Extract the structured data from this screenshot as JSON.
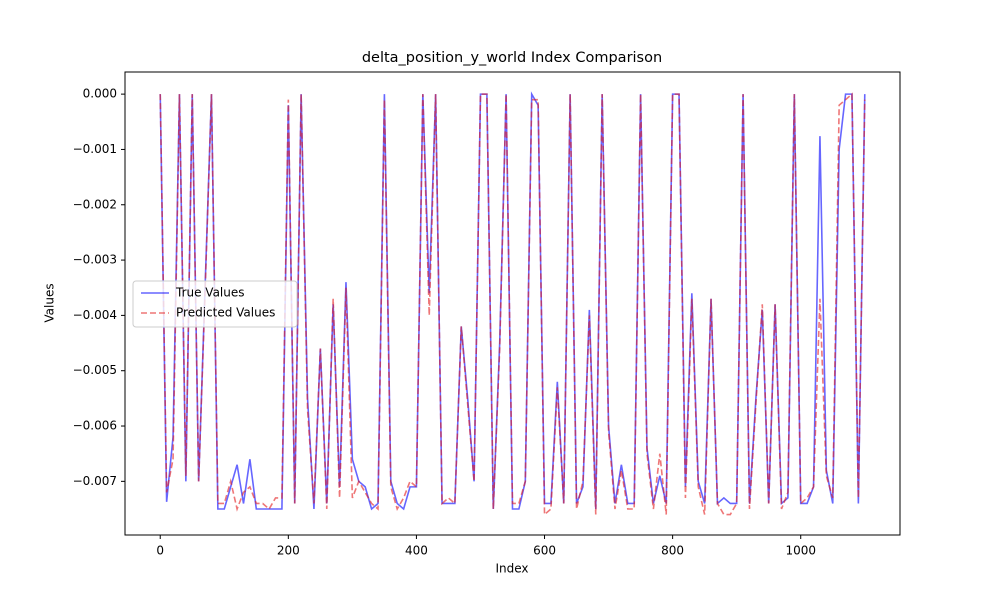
{
  "chart_data": {
    "type": "line",
    "title": "delta_position_y_world Index Comparison",
    "x_label": "Index",
    "y_label": "Values",
    "x": [
      0,
      10,
      20,
      30,
      40,
      50,
      60,
      70,
      80,
      90,
      100,
      110,
      120,
      130,
      140,
      150,
      160,
      170,
      180,
      190,
      200,
      210,
      220,
      230,
      240,
      250,
      260,
      270,
      280,
      290,
      300,
      310,
      320,
      330,
      340,
      350,
      360,
      370,
      380,
      390,
      400,
      410,
      420,
      430,
      440,
      450,
      460,
      470,
      480,
      490,
      500,
      510,
      520,
      530,
      540,
      550,
      560,
      570,
      580,
      590,
      600,
      610,
      620,
      630,
      640,
      650,
      660,
      670,
      680,
      690,
      700,
      710,
      720,
      730,
      740,
      750,
      760,
      770,
      780,
      790,
      800,
      810,
      820,
      830,
      840,
      850,
      860,
      870,
      880,
      890,
      900,
      910,
      920,
      930,
      940,
      950,
      960,
      970,
      980,
      990,
      1000,
      1010,
      1020,
      1030,
      1040,
      1050,
      1060,
      1070,
      1080,
      1090,
      1100
    ],
    "series": [
      {
        "name": "True Values",
        "color": "#0000ff",
        "dashed": false,
        "values": [
          0,
          -0.00737,
          -0.0062,
          0,
          -0.007,
          0,
          -0.007,
          -0.0035,
          0,
          -0.0075,
          -0.0075,
          -0.0071,
          -0.0067,
          -0.0074,
          -0.0066,
          -0.0075,
          -0.0075,
          -0.0075,
          -0.0075,
          -0.0075,
          -0.0002,
          -0.0074,
          0,
          -0.0055,
          -0.0075,
          -0.0046,
          -0.0074,
          -0.0038,
          -0.0071,
          -0.0034,
          -0.0066,
          -0.007,
          -0.0071,
          -0.0075,
          -0.0074,
          0,
          -0.007,
          -0.0074,
          -0.0075,
          -0.0071,
          -0.0071,
          0,
          -0.0036,
          0,
          -0.0074,
          -0.0074,
          -0.0074,
          -0.0042,
          -0.0055,
          -0.007,
          0,
          0,
          -0.0075,
          -0.0045,
          0,
          -0.0075,
          -0.0075,
          -0.007,
          0,
          -0.0002,
          -0.0074,
          -0.0074,
          -0.0052,
          -0.0074,
          0,
          -0.0074,
          -0.0071,
          -0.0039,
          -0.0075,
          0,
          -0.006,
          -0.0074,
          -0.0067,
          -0.0074,
          -0.0074,
          0,
          -0.0064,
          -0.0074,
          -0.0069,
          -0.0074,
          0,
          0,
          -0.0071,
          -0.0036,
          -0.007,
          -0.0074,
          -0.0037,
          -0.0074,
          -0.0073,
          -0.0074,
          -0.0074,
          0,
          -0.0074,
          -0.0055,
          -0.0039,
          -0.0074,
          -0.0038,
          -0.0074,
          -0.0073,
          0,
          -0.0074,
          -0.0074,
          -0.0071,
          -0.00076,
          -0.0068,
          -0.0074,
          -0.001,
          0,
          0,
          -0.0074,
          0
        ]
      },
      {
        "name": "Predicted Values",
        "color": "#e31a1c",
        "dashed": true,
        "values": [
          0,
          -0.0072,
          -0.0066,
          0,
          -0.0069,
          0,
          -0.007,
          -0.0036,
          0,
          -0.0074,
          -0.0074,
          -0.007,
          -0.0075,
          -0.0072,
          -0.0071,
          -0.0074,
          -0.0074,
          -0.0075,
          -0.0073,
          -0.0073,
          -0.0001,
          -0.0074,
          0,
          -0.0057,
          -0.0074,
          -0.0046,
          -0.0075,
          -0.0037,
          -0.0073,
          -0.0035,
          -0.0073,
          -0.007,
          -0.0072,
          -0.0074,
          -0.0075,
          -0.0001,
          -0.0071,
          -0.0075,
          -0.0073,
          -0.007,
          -0.0071,
          0,
          -0.004,
          0,
          -0.0074,
          -0.0073,
          -0.0074,
          -0.0042,
          -0.0056,
          -0.007,
          0,
          0,
          -0.0075,
          -0.0046,
          0,
          -0.0074,
          -0.0074,
          -0.007,
          -0.0001,
          -0.0001,
          -0.0076,
          -0.0075,
          -0.0053,
          -0.0074,
          0,
          -0.0075,
          -0.007,
          -0.004,
          -0.0076,
          0,
          -0.0061,
          -0.0075,
          -0.0068,
          -0.0075,
          -0.0075,
          0,
          -0.0065,
          -0.0075,
          -0.0065,
          -0.0076,
          0,
          0,
          -0.0073,
          -0.0037,
          -0.0071,
          -0.0076,
          -0.0037,
          -0.0074,
          -0.0076,
          -0.0076,
          -0.0074,
          0,
          -0.0075,
          -0.0056,
          -0.0038,
          -0.0074,
          -0.0038,
          -0.0075,
          -0.0072,
          0,
          -0.0074,
          -0.0073,
          -0.0071,
          -0.0037,
          -0.0069,
          -0.0073,
          -0.0002,
          -0.0001,
          0,
          -0.0073,
          -0.0001
        ]
      }
    ],
    "xlim": [
      -55,
      1155
    ],
    "ylim": [
      -0.00797,
      0.0004
    ],
    "xticks": [
      0,
      200,
      400,
      600,
      800,
      1000
    ],
    "yticks": [
      {
        "value": 0,
        "label": "0.000"
      },
      {
        "value": -0.001,
        "label": "−0.001"
      },
      {
        "value": -0.002,
        "label": "−0.002"
      },
      {
        "value": -0.003,
        "label": "−0.003"
      },
      {
        "value": -0.004,
        "label": "−0.004"
      },
      {
        "value": -0.005,
        "label": "−0.005"
      },
      {
        "value": -0.006,
        "label": "−0.006"
      },
      {
        "value": -0.007,
        "label": "−0.007"
      }
    ],
    "legend": "center left",
    "grid": false
  }
}
